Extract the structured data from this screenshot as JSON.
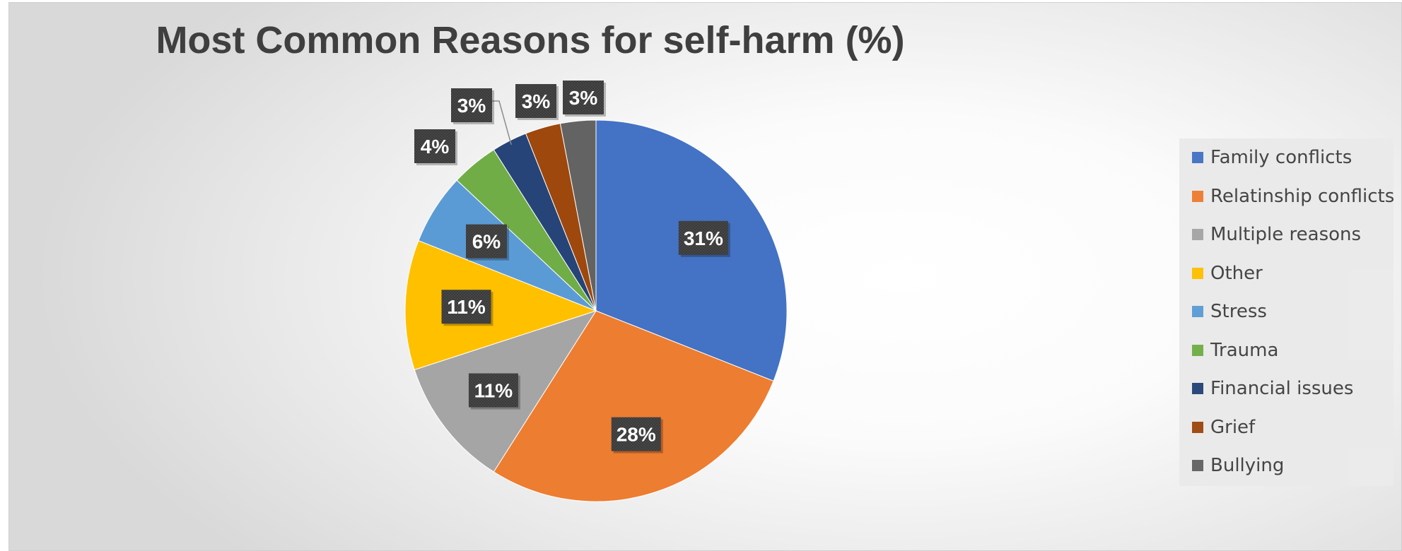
{
  "chart_data": {
    "type": "pie",
    "title": "Most Common Reasons for self-harm (%)",
    "slices": [
      {
        "label": "Family conflicts",
        "value": 31,
        "display": "31%",
        "color": "#4472C4"
      },
      {
        "label": "Relatinship conflicts",
        "value": 28,
        "display": "28%",
        "color": "#ED7D31"
      },
      {
        "label": "Multiple reasons",
        "value": 11,
        "display": "11%",
        "color": "#A5A5A5"
      },
      {
        "label": "Other",
        "value": 11,
        "display": "11%",
        "color": "#FFC000"
      },
      {
        "label": "Stress",
        "value": 6,
        "display": "6%",
        "color": "#5B9BD5"
      },
      {
        "label": "Trauma",
        "value": 4,
        "display": "4%",
        "color": "#70AD47"
      },
      {
        "label": "Financial issues",
        "value": 3,
        "display": "3%",
        "color": "#264478"
      },
      {
        "label": "Grief",
        "value": 3,
        "display": "3%",
        "color": "#9E480E"
      },
      {
        "label": "Bullying",
        "value": 3,
        "display": "3%",
        "color": "#636363"
      }
    ],
    "legend_position": "right",
    "data_label_style": "dark box, white bold text"
  }
}
